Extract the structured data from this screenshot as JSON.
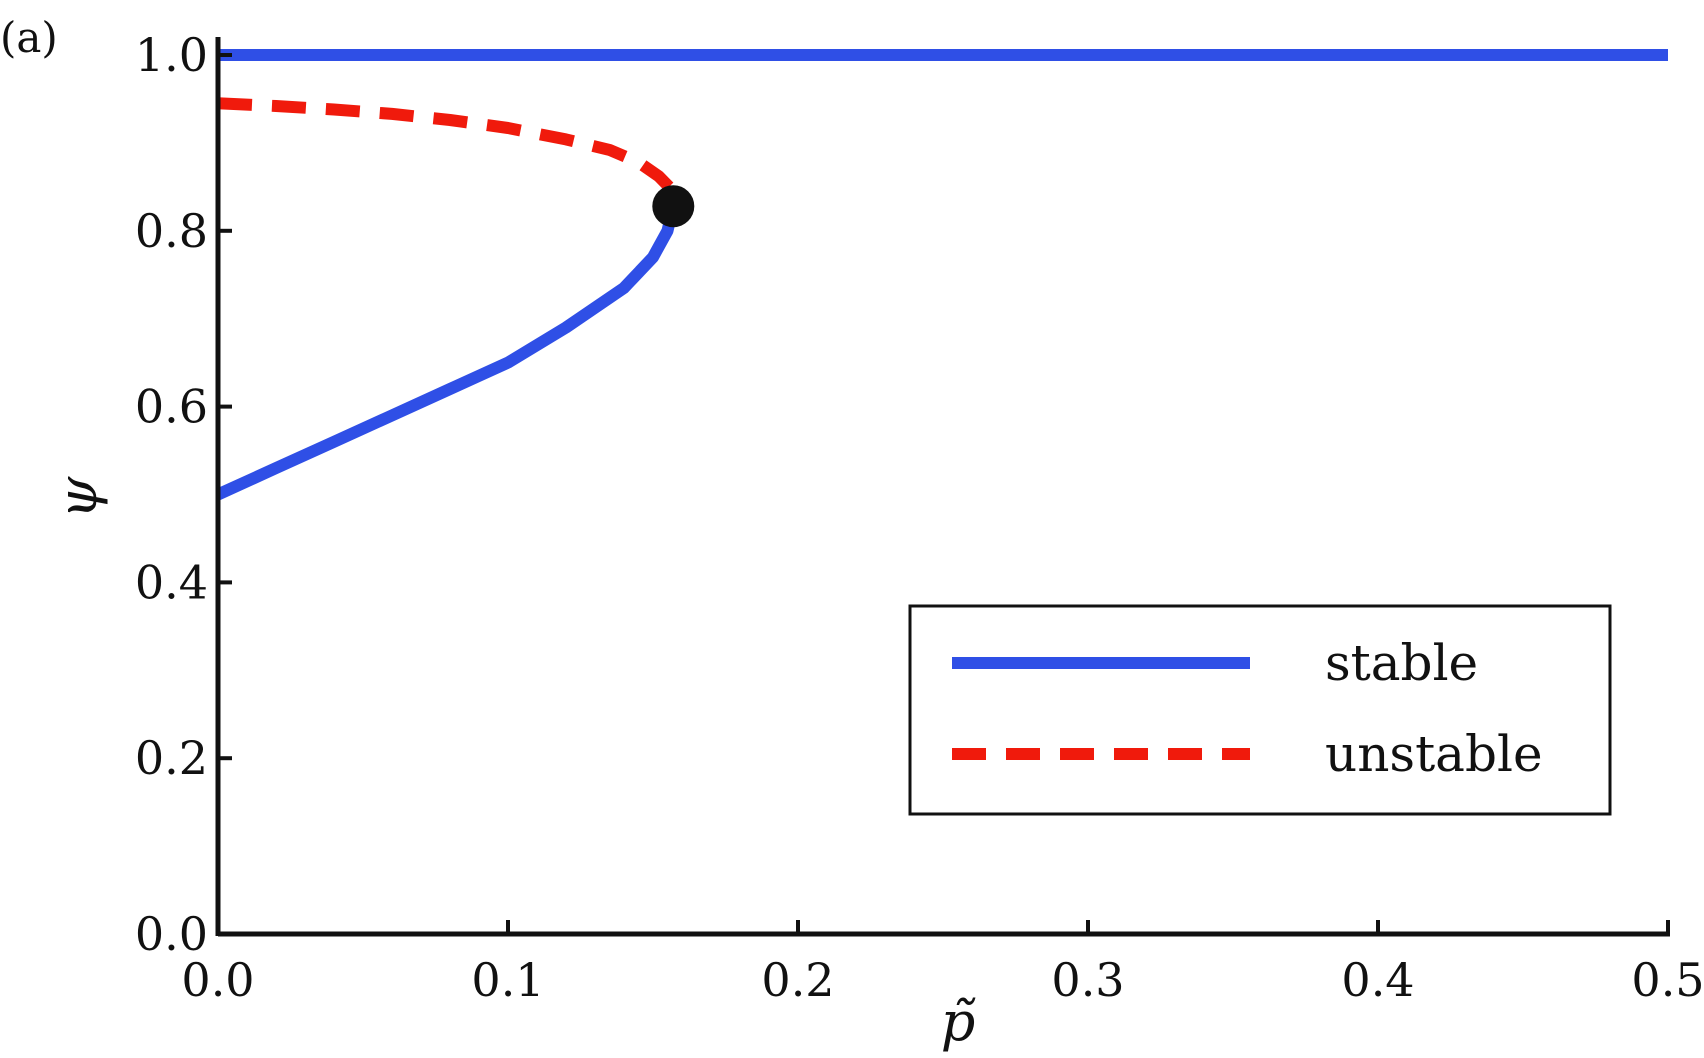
{
  "panel_label": "(a)",
  "colors": {
    "stable": "#2f4fe6",
    "unstable": "#f01a0c",
    "axis": "#111111",
    "point": "#111111"
  },
  "chart_data": {
    "type": "line",
    "xlabel": "p̃",
    "ylabel": "ψ",
    "xlim": [
      0.0,
      0.5
    ],
    "ylim": [
      0.0,
      1.0
    ],
    "xticks": [
      "0.0",
      "0.1",
      "0.2",
      "0.3",
      "0.4",
      "0.5"
    ],
    "yticks": [
      "0.0",
      "0.2",
      "0.4",
      "0.6",
      "0.8",
      "1.0"
    ],
    "grid": false,
    "legend_position": "bottom-right",
    "legend": [
      {
        "label": "stable",
        "style": "solid"
      },
      {
        "label": "unstable",
        "style": "dashed"
      }
    ],
    "series": [
      {
        "name": "stable",
        "style": "solid",
        "x": [
          0.0,
          0.5
        ],
        "y": [
          1.0,
          1.0
        ]
      },
      {
        "name": "stable",
        "style": "solid",
        "x": [
          0.0,
          0.02,
          0.04,
          0.06,
          0.08,
          0.1,
          0.12,
          0.14,
          0.15,
          0.155,
          0.157
        ],
        "y": [
          0.5,
          0.53,
          0.56,
          0.59,
          0.62,
          0.65,
          0.69,
          0.735,
          0.77,
          0.8,
          0.828
        ]
      },
      {
        "name": "unstable",
        "style": "dashed",
        "x": [
          0.0,
          0.02,
          0.04,
          0.06,
          0.08,
          0.1,
          0.12,
          0.135,
          0.145,
          0.152,
          0.157
        ],
        "y": [
          0.945,
          0.942,
          0.938,
          0.933,
          0.926,
          0.917,
          0.904,
          0.892,
          0.878,
          0.862,
          0.845
        ]
      }
    ],
    "points": [
      {
        "x": 0.157,
        "y": 0.828,
        "label": ""
      }
    ]
  }
}
